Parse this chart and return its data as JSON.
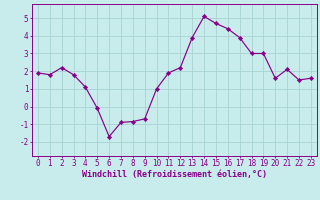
{
  "x": [
    0,
    1,
    2,
    3,
    4,
    5,
    6,
    7,
    8,
    9,
    10,
    11,
    12,
    13,
    14,
    15,
    16,
    17,
    18,
    19,
    20,
    21,
    22,
    23
  ],
  "y": [
    1.9,
    1.8,
    2.2,
    1.8,
    1.1,
    -0.1,
    -1.7,
    -0.9,
    -0.85,
    -0.7,
    1.0,
    1.9,
    2.2,
    3.9,
    5.1,
    4.7,
    4.4,
    3.9,
    3.0,
    3.0,
    1.6,
    2.1,
    1.5,
    1.6
  ],
  "line_color": "#880088",
  "marker": "D",
  "marker_size": 2.2,
  "bg_color": "#c8ecec",
  "grid_color": "#a8d4d4",
  "xlabel": "Windchill (Refroidissement éolien,°C)",
  "ylim": [
    -2.8,
    5.8
  ],
  "xlim": [
    -0.5,
    23.5
  ],
  "yticks": [
    -2,
    -1,
    0,
    1,
    2,
    3,
    4,
    5
  ],
  "xticks": [
    0,
    1,
    2,
    3,
    4,
    5,
    6,
    7,
    8,
    9,
    10,
    11,
    12,
    13,
    14,
    15,
    16,
    17,
    18,
    19,
    20,
    21,
    22,
    23
  ],
  "tick_color": "#880088",
  "axis_color": "#880088",
  "label_color": "#880088",
  "label_fontsize": 6.0,
  "tick_fontsize": 5.5,
  "linewidth": 0.85
}
